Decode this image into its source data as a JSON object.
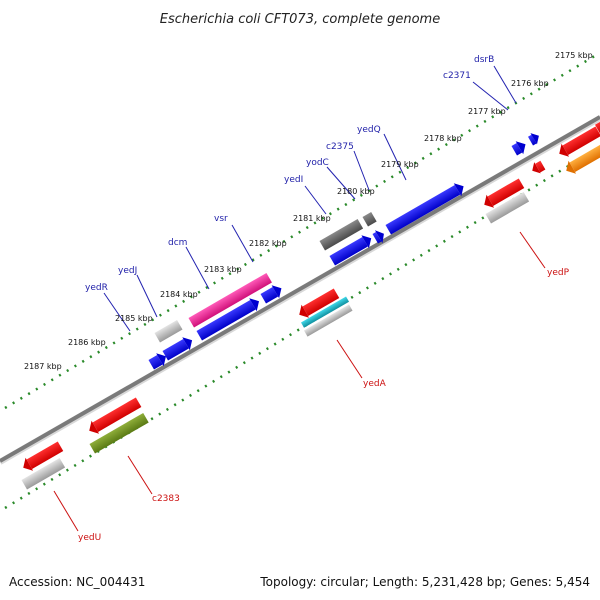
{
  "title": "Escherichia coli CFT073, complete genome",
  "footer": {
    "accession": "Accession: NC_004431",
    "summary": "Topology: circular; Length: 5,231,428 bp; Genes: 5,454"
  },
  "ticks": [
    "2175 kbp",
    "2176 kbp",
    "2177 kbp",
    "2178 kbp",
    "2179 kbp",
    "2180 kbp",
    "2181 kbp",
    "2182 kbp",
    "2183 kbp",
    "2184 kbp",
    "2185 kbp",
    "2186 kbp",
    "2187 kbp"
  ],
  "top_genes": [
    {
      "name": "dsrB",
      "color": "#1e1ea8"
    },
    {
      "name": "c2371",
      "color": "#1e1ea8"
    },
    {
      "name": "yedQ",
      "color": "#1e1ea8"
    },
    {
      "name": "c2375",
      "color": "#1e1ea8"
    },
    {
      "name": "yodC",
      "color": "#1e1ea8"
    },
    {
      "name": "yedI",
      "color": "#1e1ea8"
    },
    {
      "name": "vsr",
      "color": "#1e1ea8"
    },
    {
      "name": "dcm",
      "color": "#1e1ea8"
    },
    {
      "name": "yedJ",
      "color": "#1e1ea8"
    },
    {
      "name": "yedR",
      "color": "#1e1ea8"
    }
  ],
  "bottom_genes": [
    {
      "name": "yedP",
      "color": "#cc1111"
    },
    {
      "name": "yedA",
      "color": "#cc1111"
    },
    {
      "name": "c2383",
      "color": "#cc1111"
    },
    {
      "name": "yedU",
      "color": "#cc1111"
    }
  ],
  "colors": {
    "backbone": "#808080",
    "tick": "#2a8a2a",
    "cds_forward": "#0000ee",
    "cds_reverse": "#ee0000",
    "gene_highlight": "#e8108a",
    "gene_olive": "#6b8a1e",
    "gene_teal": "#1aa8b8",
    "gene_orange": "#ff8800",
    "gene_gray": "#b0b0b0",
    "gene_dark": "#5a5a5a"
  }
}
